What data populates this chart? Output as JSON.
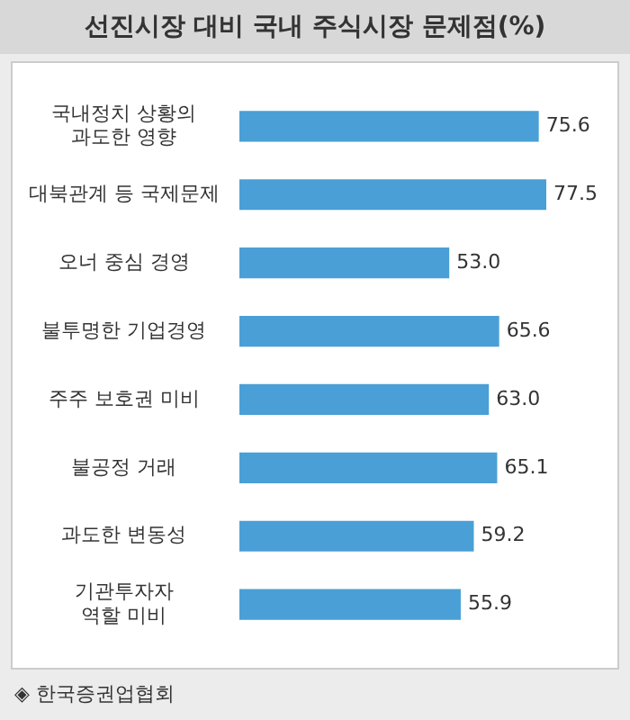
{
  "chart_data": {
    "type": "bar",
    "orientation": "horizontal",
    "title": "선진시장 대비 국내 주식시장 문제점(%)",
    "categories": [
      "국내정치 상황의\n과도한 영향",
      "대북관계 등 국제문제",
      "오너 중심 경영",
      "불투명한 기업경영",
      "주주 보호권 미비",
      "불공정 거래",
      "과도한 변동성",
      "기관투자자\n역할 미비"
    ],
    "values": [
      75.6,
      77.5,
      53.0,
      65.6,
      63.0,
      65.1,
      59.2,
      55.9
    ],
    "value_labels": [
      "75.6",
      "77.5",
      "53.0",
      "65.6",
      "63.0",
      "65.1",
      "59.2",
      "55.9"
    ],
    "color": "#4a9fd6",
    "tick_labels": "y",
    "annotations": [
      "◈ 한국증권업협회"
    ]
  }
}
